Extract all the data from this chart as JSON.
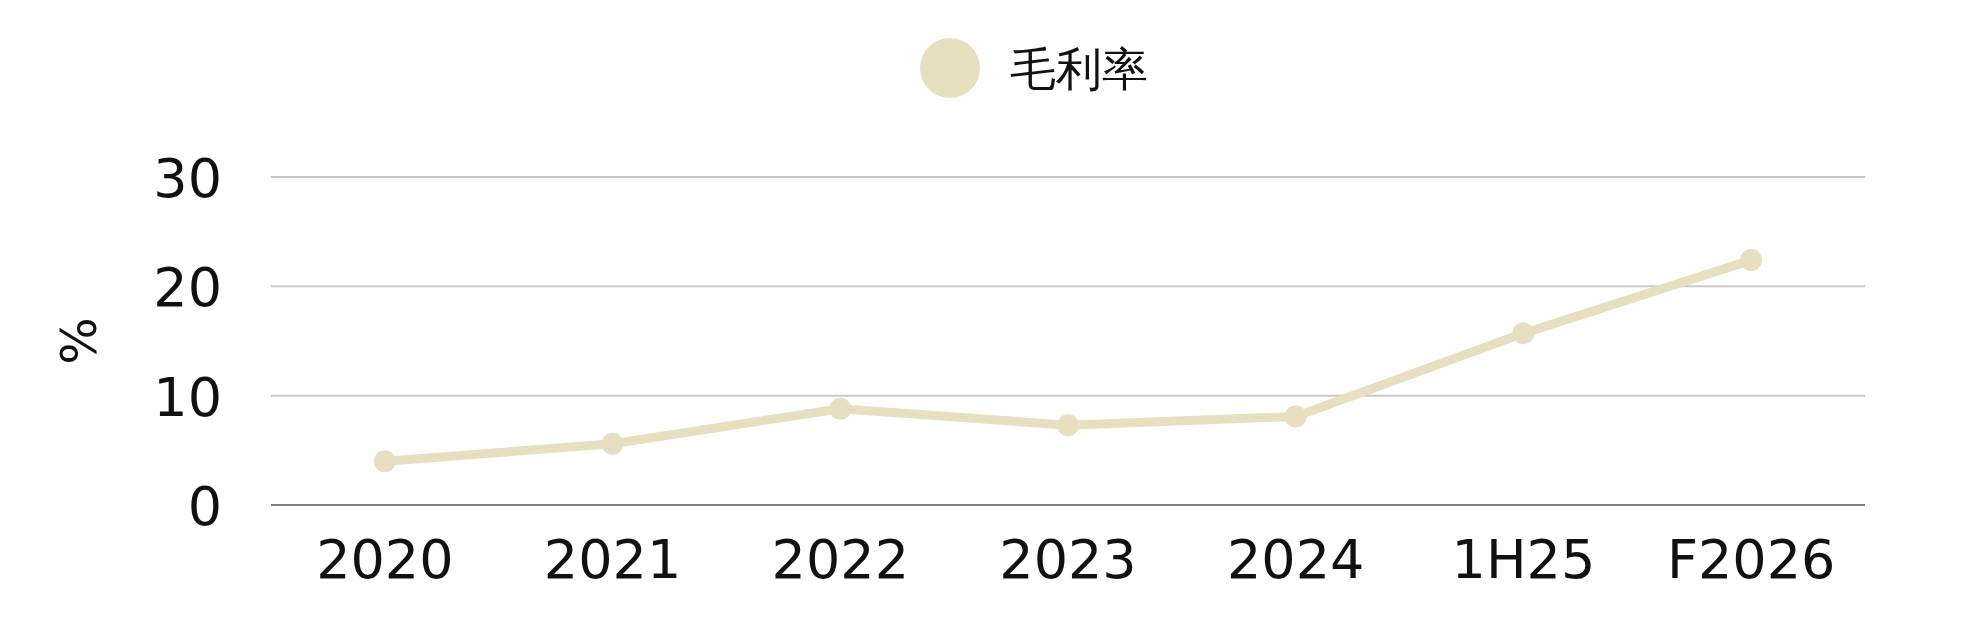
{
  "chart_data": {
    "type": "line",
    "ylabel": "%",
    "categories": [
      "2020",
      "2021",
      "2022",
      "2023",
      "2024",
      "1H25",
      "F2026"
    ],
    "series": [
      {
        "name": "毛利率",
        "color": "#e8dfc0",
        "values": [
          4.0,
          5.6,
          8.8,
          7.3,
          8.1,
          15.7,
          22.4
        ]
      }
    ],
    "ylim": [
      0,
      30
    ],
    "yticks": [
      0,
      10,
      20,
      30
    ],
    "grid": "y",
    "legend": "top",
    "marker": "circle",
    "line_style": "solid"
  }
}
